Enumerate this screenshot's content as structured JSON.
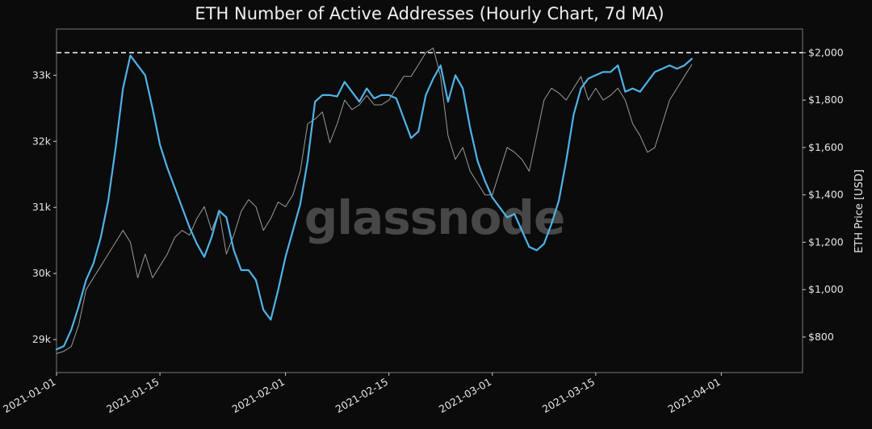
{
  "chart_data": {
    "type": "line",
    "title": "ETH Number of Active Addresses (Hourly Chart, 7d MA)",
    "watermark": "glassnode",
    "x_ticks": [
      "2021-01-01",
      "2021-01-15",
      "2021-02-01",
      "2021-02-15",
      "2021-03-01",
      "2021-03-15",
      "2021-04-01"
    ],
    "x_tick_days": [
      0,
      14,
      31,
      45,
      59,
      73,
      90
    ],
    "xlim_days": [
      0,
      101
    ],
    "y_left": {
      "label": "",
      "ylim": [
        28500,
        33700
      ],
      "ticks": [
        29000,
        30000,
        31000,
        32000,
        33000
      ],
      "tick_labels": [
        "29k",
        "30k",
        "31k",
        "32k",
        "33k"
      ]
    },
    "y_right": {
      "label": "ETH Price [USD]",
      "ylim": [
        650,
        2100
      ],
      "ticks": [
        800,
        1000,
        1200,
        1400,
        1600,
        1800,
        2000
      ],
      "tick_labels": [
        "$800",
        "$1,000",
        "$1,200",
        "$1,400",
        "$1,600",
        "$1,800",
        "$2,000"
      ]
    },
    "reference_line": {
      "axis": "right",
      "value": 2000,
      "style": "dashed",
      "color": "#ffffff"
    },
    "series": [
      {
        "color": "#4fb3e6",
        "axis": "left",
        "points": [
          [
            0,
            28850
          ],
          [
            1,
            28900
          ],
          [
            2,
            29150
          ],
          [
            3,
            29500
          ],
          [
            4,
            29900
          ],
          [
            5,
            30150
          ],
          [
            6,
            30550
          ],
          [
            7,
            31100
          ],
          [
            8,
            31900
          ],
          [
            9,
            32800
          ],
          [
            10,
            33300
          ],
          [
            11,
            33150
          ],
          [
            12,
            33000
          ],
          [
            13,
            32500
          ],
          [
            14,
            31950
          ],
          [
            15,
            31600
          ],
          [
            16,
            31300
          ],
          [
            17,
            31000
          ],
          [
            18,
            30700
          ],
          [
            19,
            30450
          ],
          [
            20,
            30250
          ],
          [
            21,
            30550
          ],
          [
            22,
            30950
          ],
          [
            23,
            30850
          ],
          [
            24,
            30350
          ],
          [
            25,
            30050
          ],
          [
            26,
            30050
          ],
          [
            27,
            29900
          ],
          [
            28,
            29450
          ],
          [
            29,
            29300
          ],
          [
            30,
            29750
          ],
          [
            31,
            30250
          ],
          [
            32,
            30650
          ],
          [
            33,
            31050
          ],
          [
            34,
            31700
          ],
          [
            35,
            32600
          ],
          [
            36,
            32700
          ],
          [
            37,
            32700
          ],
          [
            38,
            32680
          ],
          [
            39,
            32900
          ],
          [
            40,
            32750
          ],
          [
            41,
            32600
          ],
          [
            42,
            32800
          ],
          [
            43,
            32650
          ],
          [
            44,
            32700
          ],
          [
            45,
            32700
          ],
          [
            46,
            32650
          ],
          [
            47,
            32350
          ],
          [
            48,
            32050
          ],
          [
            49,
            32150
          ],
          [
            50,
            32700
          ],
          [
            51,
            32950
          ],
          [
            52,
            33150
          ],
          [
            53,
            32600
          ],
          [
            54,
            33000
          ],
          [
            55,
            32800
          ],
          [
            56,
            32200
          ],
          [
            57,
            31700
          ],
          [
            58,
            31400
          ],
          [
            59,
            31150
          ],
          [
            60,
            31000
          ],
          [
            61,
            30850
          ],
          [
            62,
            30900
          ],
          [
            63,
            30650
          ],
          [
            64,
            30400
          ],
          [
            65,
            30350
          ],
          [
            66,
            30450
          ],
          [
            67,
            30750
          ],
          [
            68,
            31100
          ],
          [
            69,
            31700
          ],
          [
            70,
            32400
          ],
          [
            71,
            32800
          ],
          [
            72,
            32950
          ],
          [
            73,
            33000
          ],
          [
            74,
            33050
          ],
          [
            75,
            33050
          ],
          [
            76,
            33150
          ],
          [
            77,
            32750
          ],
          [
            78,
            32800
          ],
          [
            79,
            32750
          ],
          [
            80,
            32900
          ],
          [
            81,
            33050
          ],
          [
            82,
            33100
          ],
          [
            83,
            33150
          ],
          [
            84,
            33100
          ],
          [
            85,
            33150
          ],
          [
            86,
            33250
          ]
        ]
      },
      {
        "color": "#9a9a9a",
        "axis": "right",
        "points": [
          [
            0,
            730
          ],
          [
            1,
            740
          ],
          [
            2,
            760
          ],
          [
            3,
            850
          ],
          [
            4,
            1000
          ],
          [
            5,
            1050
          ],
          [
            6,
            1100
          ],
          [
            7,
            1150
          ],
          [
            8,
            1200
          ],
          [
            9,
            1250
          ],
          [
            10,
            1200
          ],
          [
            11,
            1050
          ],
          [
            12,
            1150
          ],
          [
            13,
            1050
          ],
          [
            14,
            1100
          ],
          [
            15,
            1150
          ],
          [
            16,
            1220
          ],
          [
            17,
            1250
          ],
          [
            18,
            1230
          ],
          [
            19,
            1300
          ],
          [
            20,
            1350
          ],
          [
            21,
            1250
          ],
          [
            22,
            1330
          ],
          [
            23,
            1150
          ],
          [
            24,
            1230
          ],
          [
            25,
            1330
          ],
          [
            26,
            1380
          ],
          [
            27,
            1350
          ],
          [
            28,
            1250
          ],
          [
            29,
            1300
          ],
          [
            30,
            1370
          ],
          [
            31,
            1350
          ],
          [
            32,
            1400
          ],
          [
            33,
            1500
          ],
          [
            34,
            1700
          ],
          [
            35,
            1720
          ],
          [
            36,
            1750
          ],
          [
            37,
            1620
          ],
          [
            38,
            1700
          ],
          [
            39,
            1800
          ],
          [
            40,
            1760
          ],
          [
            41,
            1780
          ],
          [
            42,
            1820
          ],
          [
            43,
            1780
          ],
          [
            44,
            1780
          ],
          [
            45,
            1800
          ],
          [
            46,
            1850
          ],
          [
            47,
            1900
          ],
          [
            48,
            1900
          ],
          [
            49,
            1950
          ],
          [
            50,
            2000
          ],
          [
            51,
            2020
          ],
          [
            52,
            1900
          ],
          [
            53,
            1650
          ],
          [
            54,
            1550
          ],
          [
            55,
            1600
          ],
          [
            56,
            1500
          ],
          [
            57,
            1450
          ],
          [
            58,
            1400
          ],
          [
            59,
            1400
          ],
          [
            60,
            1500
          ],
          [
            61,
            1600
          ],
          [
            62,
            1580
          ],
          [
            63,
            1550
          ],
          [
            64,
            1500
          ],
          [
            65,
            1650
          ],
          [
            66,
            1800
          ],
          [
            67,
            1850
          ],
          [
            68,
            1830
          ],
          [
            69,
            1800
          ],
          [
            70,
            1850
          ],
          [
            71,
            1900
          ],
          [
            72,
            1800
          ],
          [
            73,
            1850
          ],
          [
            74,
            1800
          ],
          [
            75,
            1820
          ],
          [
            76,
            1850
          ],
          [
            77,
            1800
          ],
          [
            78,
            1700
          ],
          [
            79,
            1650
          ],
          [
            80,
            1580
          ],
          [
            81,
            1600
          ],
          [
            82,
            1700
          ],
          [
            83,
            1800
          ],
          [
            84,
            1850
          ],
          [
            85,
            1900
          ],
          [
            86,
            1950
          ]
        ]
      }
    ]
  }
}
